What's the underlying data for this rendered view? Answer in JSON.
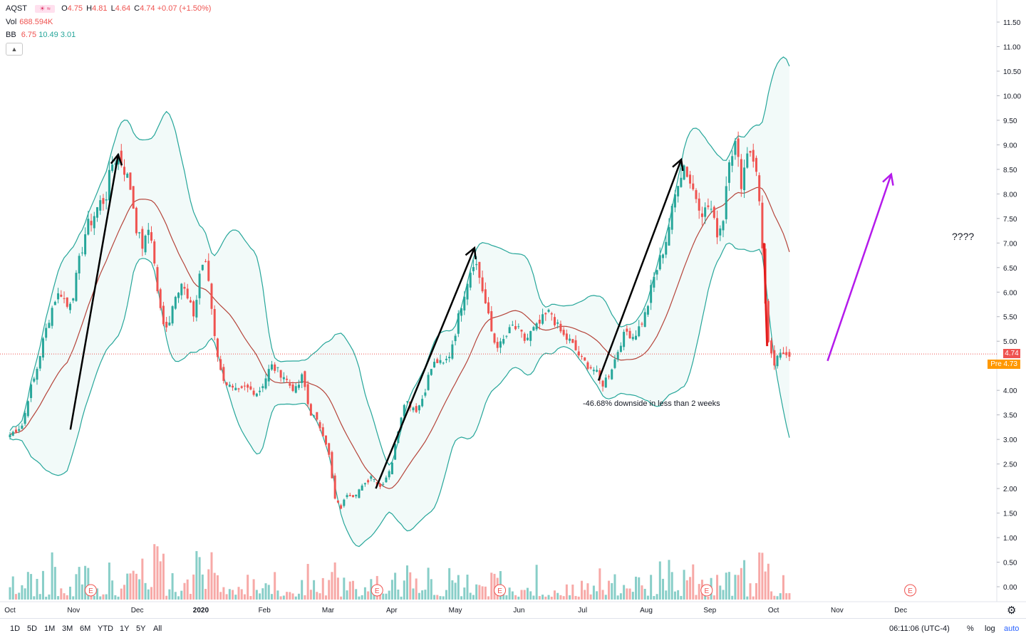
{
  "symbol": "AQST",
  "ohlc": {
    "open_label": "O",
    "open": "4.75",
    "high_label": "H",
    "high": "4.81",
    "low_label": "L",
    "low": "4.64",
    "close_label": "C",
    "close": "4.74",
    "change": "+0.07 (+1.50%)"
  },
  "volume": {
    "label": "Vol",
    "value": "688.594K"
  },
  "bb": {
    "label": "BB",
    "v1": "6.75",
    "v2": "10.49",
    "v3": "3.01"
  },
  "price_tag": "4.74",
  "pre_tag": "Pre  4.73",
  "annotations": {
    "downside": "-46.68% downside in less than 2 weeks",
    "question": "????"
  },
  "earnings_marker": "E",
  "bottom_bar": {
    "ranges": [
      "1D",
      "5D",
      "1M",
      "3M",
      "6M",
      "YTD",
      "1Y",
      "5Y",
      "All"
    ],
    "time": "06:11:06 (UTC-4)",
    "percent": "%",
    "log": "log",
    "auto": "auto"
  },
  "colors": {
    "up": "#26a69a",
    "down": "#ef5350",
    "band": "#26a69a",
    "basis": "#b5443a",
    "arrow_black": "#000000",
    "arrow_purple": "#b41aeb",
    "price_line": "#ef5350",
    "pre_tag": "#ff9800"
  },
  "chart_data": {
    "type": "candlestick",
    "y_axis_ticks": [
      "11.50",
      "11.00",
      "10.50",
      "10.00",
      "9.50",
      "9.00",
      "8.50",
      "8.00",
      "7.50",
      "7.00",
      "6.50",
      "6.00",
      "5.50",
      "5.00",
      "4.50",
      "4.00",
      "3.50",
      "3.00",
      "2.50",
      "2.00",
      "1.50",
      "1.00",
      "0.50",
      "0.00"
    ],
    "x_axis_ticks": [
      "Oct",
      "Nov",
      "Dec",
      "2020",
      "Feb",
      "Mar",
      "Apr",
      "May",
      "Jun",
      "Jul",
      "Aug",
      "Sep",
      "Oct",
      "Nov",
      "Dec"
    ],
    "ylim": [
      0,
      11.8
    ],
    "last_price": 4.74,
    "pre_market_price": 4.73,
    "close_path": [
      [
        0,
        3.1
      ],
      [
        0.1,
        3.2
      ],
      [
        0.2,
        3.3
      ],
      [
        0.3,
        3.95
      ],
      [
        0.4,
        4.3
      ],
      [
        0.5,
        4.9
      ],
      [
        0.6,
        5.4
      ],
      [
        0.7,
        5.85
      ],
      [
        0.8,
        6.0
      ],
      [
        0.9,
        5.7
      ],
      [
        1.0,
        6.0
      ],
      [
        1.1,
        6.7
      ],
      [
        1.2,
        7.3
      ],
      [
        1.3,
        7.5
      ],
      [
        1.4,
        7.8
      ],
      [
        1.5,
        7.9
      ],
      [
        1.6,
        8.6
      ],
      [
        1.7,
        8.8
      ],
      [
        1.8,
        8.5
      ],
      [
        1.9,
        8.1
      ],
      [
        2.0,
        7.2
      ],
      [
        2.1,
        6.9
      ],
      [
        2.2,
        7.4
      ],
      [
        2.3,
        6.2
      ],
      [
        2.4,
        5.3
      ],
      [
        2.5,
        5.4
      ],
      [
        2.6,
        6.0
      ],
      [
        2.7,
        6.2
      ],
      [
        2.8,
        5.8
      ],
      [
        2.9,
        5.5
      ],
      [
        3.0,
        6.6
      ],
      [
        3.1,
        6.5
      ],
      [
        3.2,
        5.3
      ],
      [
        3.3,
        4.4
      ],
      [
        3.4,
        4.15
      ],
      [
        3.5,
        4.0
      ],
      [
        3.6,
        3.95
      ],
      [
        3.7,
        4.05
      ],
      [
        3.8,
        4.0
      ],
      [
        3.9,
        3.95
      ],
      [
        4.0,
        4.2
      ],
      [
        4.1,
        4.5
      ],
      [
        4.2,
        4.4
      ],
      [
        4.3,
        4.3
      ],
      [
        4.4,
        4.1
      ],
      [
        4.5,
        4.0
      ],
      [
        4.6,
        4.3
      ],
      [
        4.7,
        3.6
      ],
      [
        4.8,
        3.4
      ],
      [
        4.9,
        3.2
      ],
      [
        5.0,
        2.8
      ],
      [
        5.1,
        1.8
      ],
      [
        5.2,
        1.6
      ],
      [
        5.3,
        1.9
      ],
      [
        5.4,
        1.85
      ],
      [
        5.5,
        2.0
      ],
      [
        5.6,
        2.1
      ],
      [
        5.7,
        2.3
      ],
      [
        5.8,
        2.0
      ],
      [
        5.9,
        2.2
      ],
      [
        6.0,
        2.5
      ],
      [
        6.1,
        3.2
      ],
      [
        6.2,
        3.8
      ],
      [
        6.3,
        3.7
      ],
      [
        6.4,
        3.6
      ],
      [
        6.5,
        3.9
      ],
      [
        6.6,
        4.4
      ],
      [
        6.7,
        4.6
      ],
      [
        6.8,
        4.5
      ],
      [
        6.9,
        4.7
      ],
      [
        7.0,
        5.2
      ],
      [
        7.1,
        5.8
      ],
      [
        7.2,
        6.3
      ],
      [
        7.3,
        6.7
      ],
      [
        7.4,
        6.2
      ],
      [
        7.5,
        5.6
      ],
      [
        7.6,
        5.0
      ],
      [
        7.7,
        4.9
      ],
      [
        7.8,
        5.1
      ],
      [
        7.9,
        5.3
      ],
      [
        8.0,
        5.2
      ],
      [
        8.1,
        5.0
      ],
      [
        8.2,
        5.2
      ],
      [
        8.3,
        5.3
      ],
      [
        8.4,
        5.5
      ],
      [
        8.5,
        5.6
      ],
      [
        8.6,
        5.3
      ],
      [
        8.7,
        5.1
      ],
      [
        8.8,
        5.0
      ],
      [
        8.9,
        4.8
      ],
      [
        9.0,
        4.6
      ],
      [
        9.1,
        4.5
      ],
      [
        9.2,
        4.4
      ],
      [
        9.3,
        4.1
      ],
      [
        9.4,
        4.3
      ],
      [
        9.5,
        4.6
      ],
      [
        9.6,
        5.0
      ],
      [
        9.7,
        5.2
      ],
      [
        9.8,
        5.1
      ],
      [
        9.9,
        5.3
      ],
      [
        10.0,
        5.6
      ],
      [
        10.1,
        6.2
      ],
      [
        10.2,
        6.6
      ],
      [
        10.3,
        7.0
      ],
      [
        10.4,
        7.6
      ],
      [
        10.5,
        8.3
      ],
      [
        10.6,
        8.6
      ],
      [
        10.7,
        8.2
      ],
      [
        10.8,
        7.9
      ],
      [
        10.9,
        7.6
      ],
      [
        11.0,
        7.8
      ],
      [
        11.1,
        7.2
      ],
      [
        11.2,
        7.4
      ],
      [
        11.3,
        8.8
      ],
      [
        11.4,
        9.0
      ],
      [
        11.5,
        8.2
      ],
      [
        11.6,
        9.0
      ],
      [
        11.7,
        8.7
      ],
      [
        11.8,
        7.6
      ],
      [
        11.9,
        5.0
      ],
      [
        12.0,
        4.5
      ],
      [
        12.1,
        4.7
      ],
      [
        12.2,
        4.8
      ],
      [
        12.25,
        4.74
      ]
    ],
    "annotation_arrows": [
      {
        "from": [
          0.95,
          3.2
        ],
        "to": [
          1.7,
          8.8
        ],
        "color": "black"
      },
      {
        "from": [
          5.75,
          2.0
        ],
        "to": [
          7.3,
          6.9
        ],
        "color": "black"
      },
      {
        "from": [
          9.25,
          4.2
        ],
        "to": [
          10.55,
          8.7
        ],
        "color": "black"
      },
      {
        "from": [
          11.85,
          7.0
        ],
        "to": [
          11.9,
          4.9
        ],
        "color": "red"
      },
      {
        "from": [
          12.85,
          4.6
        ],
        "to": [
          13.85,
          8.4
        ],
        "color": "purple"
      }
    ]
  }
}
